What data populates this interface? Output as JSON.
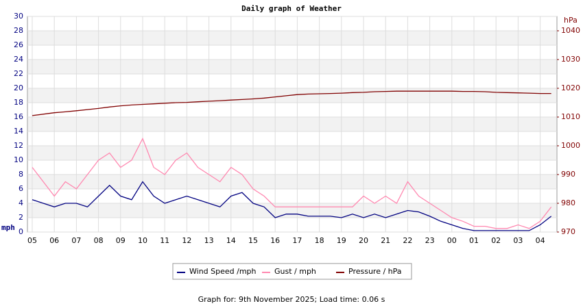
{
  "chart_data": {
    "type": "line",
    "title": "Daily graph of Weather",
    "ylabel": "mph",
    "y2label": "hPa",
    "footer": "Graph for: 9th November 2025; Load time: 0.06 s",
    "categories": [
      "05",
      null,
      "06",
      null,
      "07",
      null,
      "08",
      null,
      "09",
      null,
      "10",
      null,
      "11",
      null,
      "12",
      null,
      "13",
      null,
      "14",
      null,
      "15",
      null,
      "16",
      null,
      "17",
      null,
      "18",
      null,
      "19",
      null,
      "20",
      null,
      "21",
      null,
      "22",
      null,
      "23",
      null,
      "00",
      null,
      "01",
      null,
      "02",
      null,
      "03",
      null,
      "04",
      null
    ],
    "series": [
      {
        "name": "Wind Speed /mph",
        "color": "#000080",
        "values": [
          4.5,
          4,
          3.5,
          4,
          4,
          3.5,
          5,
          6.5,
          5,
          4.5,
          7,
          5,
          4,
          4.5,
          5,
          4.5,
          4,
          3.5,
          5,
          5.5,
          4,
          3.5,
          2,
          2.5,
          2.5,
          2.2,
          2.2,
          2.2,
          2,
          2.5,
          2,
          2.5,
          2,
          2.5,
          3,
          2.8,
          2.2,
          1.5,
          1,
          0.5,
          0.2,
          0.2,
          0.2,
          0.2,
          0.2,
          0.2,
          1,
          2.2
        ]
      },
      {
        "name": "Gust / mph",
        "color": "#ff88b0",
        "values": [
          9,
          7,
          5,
          7,
          6,
          8,
          10,
          11,
          9,
          10,
          13,
          9,
          8,
          10,
          11,
          9,
          8,
          7,
          9,
          8,
          6,
          5,
          3.5,
          3.5,
          3.5,
          3.5,
          3.5,
          3.5,
          3.5,
          3.5,
          5,
          4,
          5,
          4,
          7,
          5,
          4,
          3,
          2,
          1.5,
          0.8,
          0.8,
          0.5,
          0.5,
          1,
          0.5,
          1.5,
          3.5
        ]
      },
      {
        "name": "Pressure / hPa",
        "color": "#800000",
        "axis": "y2",
        "values": [
          1010.5,
          1011,
          1011.5,
          1011.8,
          1012.2,
          1012.6,
          1013,
          1013.5,
          1013.9,
          1014.2,
          1014.4,
          1014.6,
          1014.8,
          1015,
          1015.1,
          1015.3,
          1015.5,
          1015.7,
          1015.9,
          1016.1,
          1016.3,
          1016.6,
          1017,
          1017.4,
          1017.8,
          1018,
          1018.1,
          1018.2,
          1018.3,
          1018.5,
          1018.6,
          1018.8,
          1018.9,
          1019,
          1019,
          1019,
          1019,
          1019,
          1019,
          1018.9,
          1018.9,
          1018.8,
          1018.6,
          1018.5,
          1018.4,
          1018.3,
          1018.2,
          1018.2
        ]
      }
    ],
    "ylim": [
      0,
      30
    ],
    "yticks": [
      0,
      2,
      4,
      6,
      8,
      10,
      12,
      14,
      16,
      18,
      20,
      22,
      24,
      26,
      28,
      30
    ],
    "y2lim": [
      970,
      1045
    ],
    "y2ticks": [
      970,
      980,
      990,
      1000,
      1010,
      1020,
      1030,
      1040
    ],
    "grid": true
  }
}
